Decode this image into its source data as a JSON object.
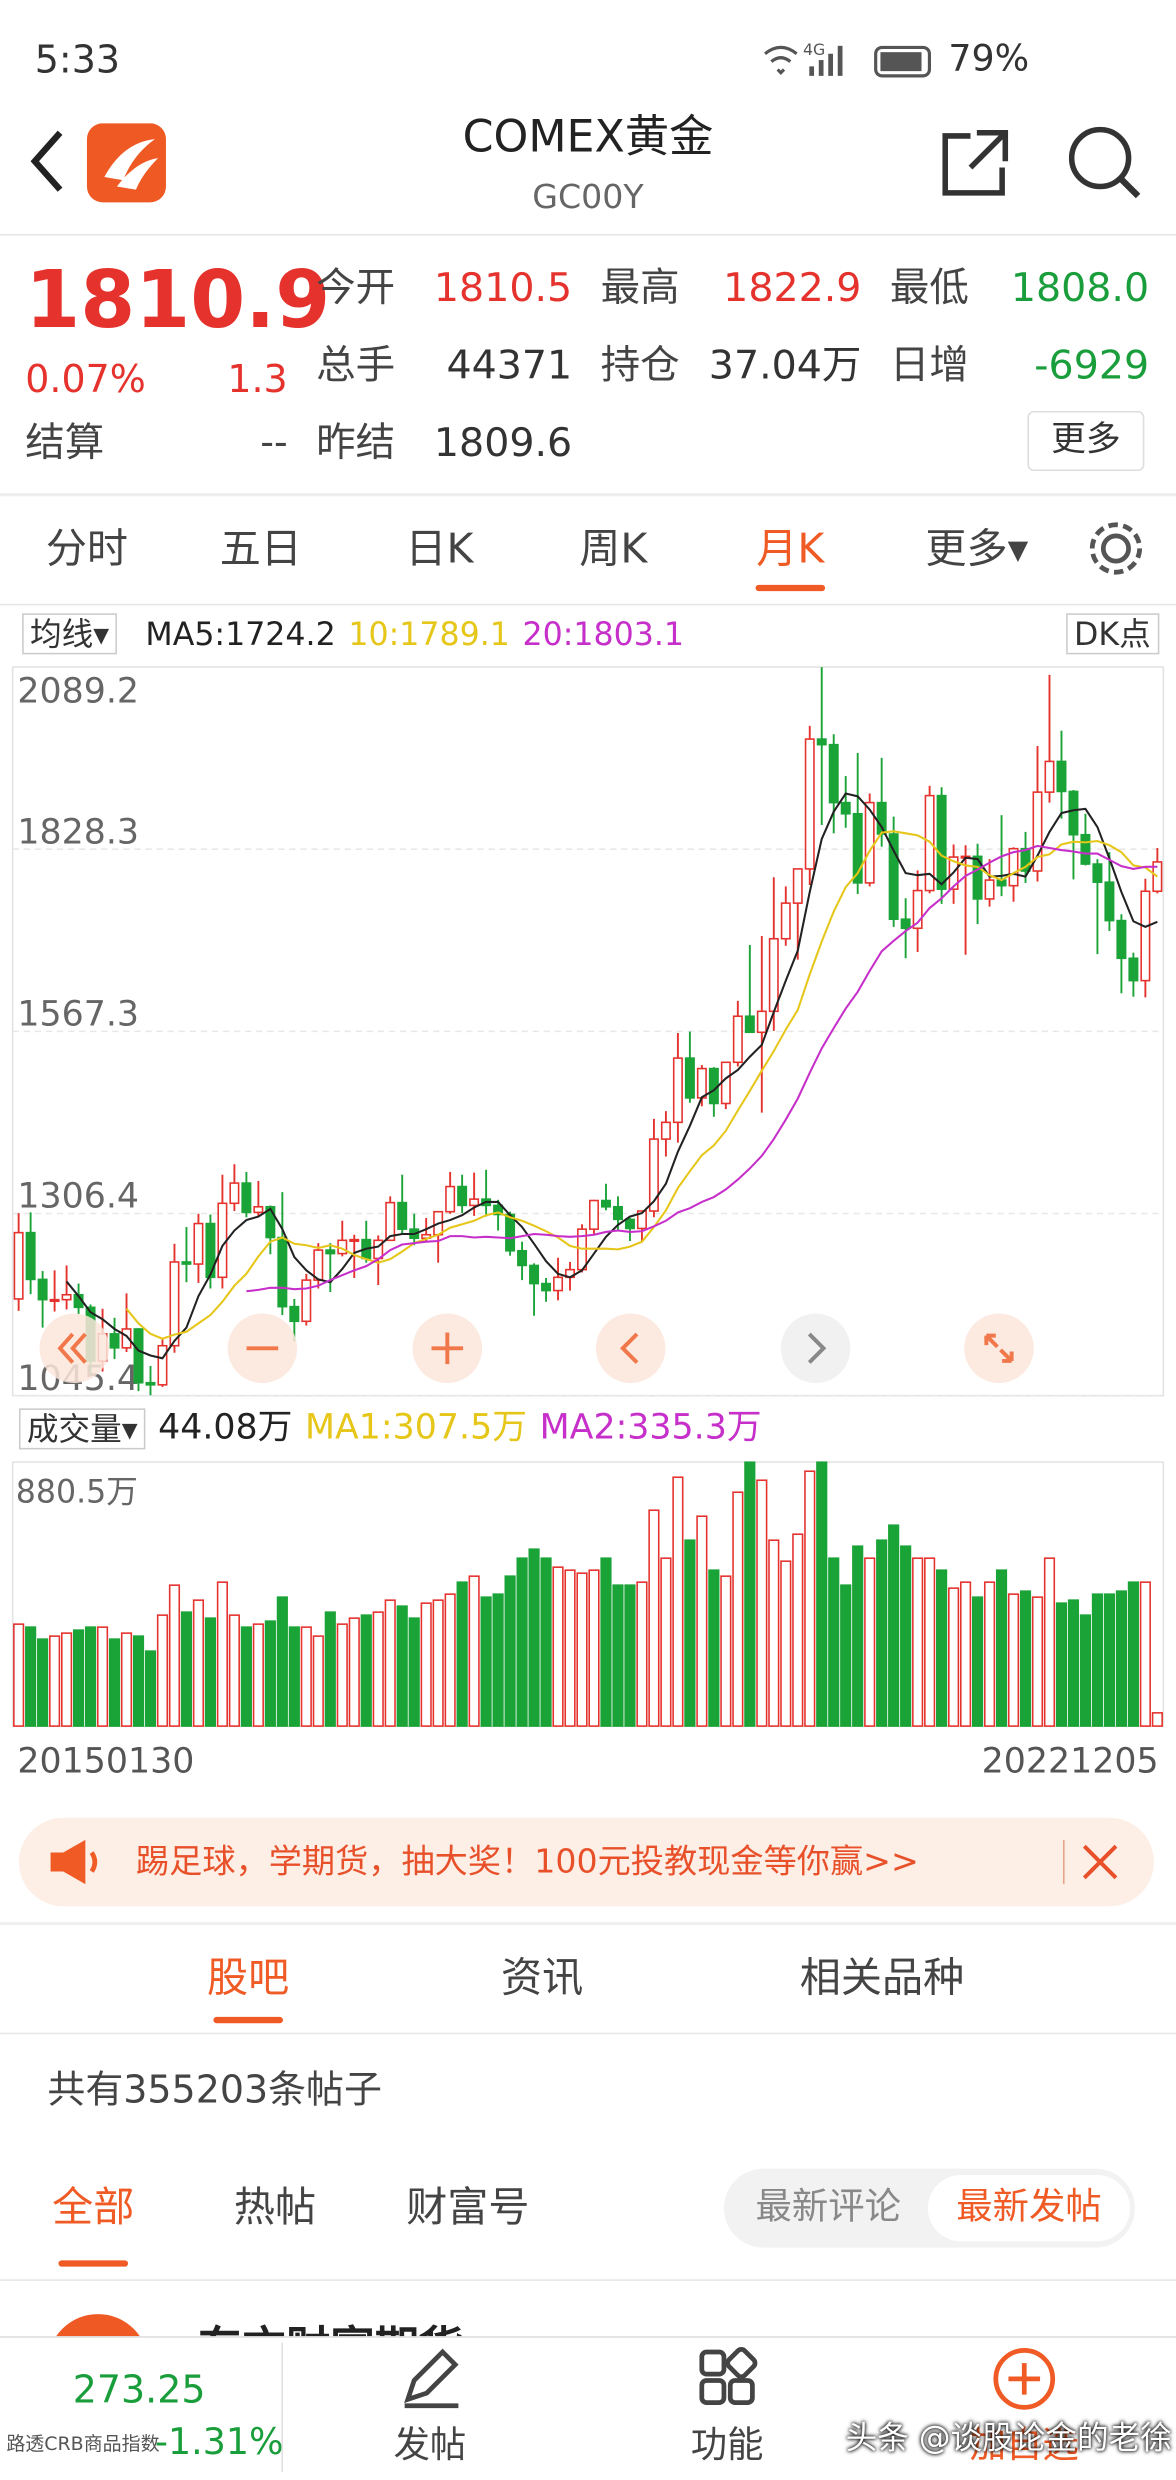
{
  "status_bar": {
    "time": "5:33",
    "network": "4G",
    "battery": "79%"
  },
  "header": {
    "title": "COMEX黄金",
    "code": "GC00Y"
  },
  "quote": {
    "price": "1810.9",
    "change_pct": "0.07%",
    "change": "1.3",
    "settle_label": "结算",
    "settle_value": "--",
    "more_button": "更多",
    "fields": [
      {
        "label": "今开",
        "value": "1810.5",
        "color": "#e5322d"
      },
      {
        "label": "最高",
        "value": "1822.9",
        "color": "#e5322d"
      },
      {
        "label": "最低",
        "value": "1808.0",
        "color": "#1a9e3c"
      },
      {
        "label": "总手",
        "value": "44371",
        "color": "#333333"
      },
      {
        "label": "持仓",
        "value": "37.04万",
        "color": "#333333"
      },
      {
        "label": "日增",
        "value": "-6929",
        "color": "#1a9e3c"
      },
      {
        "label": "昨结",
        "value": "1809.6",
        "color": "#333333"
      }
    ]
  },
  "period_tabs": {
    "items": [
      "分时",
      "五日",
      "日K",
      "周K",
      "月K",
      "更多▾"
    ],
    "active": 4
  },
  "dk_button": "DK点",
  "chart_data": [
    {
      "type": "candlestick",
      "legend": "均线▾",
      "ylim": [
        1045.4,
        2089.2
      ],
      "yticks": [
        1045.4,
        1306.4,
        1567.3,
        1828.3,
        2089.2
      ],
      "grid": true,
      "up_color": "#e5322d",
      "down_color": "#1aa336",
      "candles": [
        [
          1184,
          1307,
          1167,
          1279
        ],
        [
          1279,
          1308,
          1191,
          1212
        ],
        [
          1212,
          1224,
          1143,
          1183
        ],
        [
          1183,
          1225,
          1166,
          1183
        ],
        [
          1183,
          1232,
          1169,
          1190
        ],
        [
          1190,
          1206,
          1162,
          1172
        ],
        [
          1172,
          1176,
          1077,
          1095
        ],
        [
          1095,
          1170,
          1080,
          1134
        ],
        [
          1134,
          1157,
          1098,
          1114
        ],
        [
          1114,
          1192,
          1108,
          1141
        ],
        [
          1141,
          1142,
          1052,
          1064
        ],
        [
          1064,
          1088,
          1046,
          1061
        ],
        [
          1061,
          1128,
          1058,
          1117
        ],
        [
          1117,
          1263,
          1107,
          1237
        ],
        [
          1237,
          1287,
          1208,
          1234
        ],
        [
          1234,
          1306,
          1207,
          1292
        ],
        [
          1292,
          1305,
          1199,
          1215
        ],
        [
          1215,
          1362,
          1199,
          1321
        ],
        [
          1321,
          1377,
          1310,
          1350
        ],
        [
          1350,
          1366,
          1301,
          1308
        ],
        [
          1308,
          1353,
          1302,
          1316
        ],
        [
          1316,
          1318,
          1248,
          1272
        ],
        [
          1272,
          1337,
          1161,
          1173
        ],
        [
          1173,
          1184,
          1123,
          1152
        ],
        [
          1152,
          1220,
          1146,
          1211
        ],
        [
          1211,
          1264,
          1199,
          1254
        ],
        [
          1254,
          1264,
          1194,
          1249
        ],
        [
          1249,
          1296,
          1245,
          1268
        ],
        [
          1268,
          1276,
          1214,
          1269
        ],
        [
          1269,
          1296,
          1236,
          1242
        ],
        [
          1242,
          1275,
          1204,
          1268
        ],
        [
          1268,
          1331,
          1267,
          1322
        ],
        [
          1322,
          1362,
          1278,
          1284
        ],
        [
          1284,
          1306,
          1261,
          1271
        ],
        [
          1271,
          1300,
          1266,
          1276
        ],
        [
          1276,
          1310,
          1236,
          1309
        ],
        [
          1309,
          1366,
          1306,
          1345
        ],
        [
          1345,
          1362,
          1307,
          1318
        ],
        [
          1318,
          1365,
          1303,
          1327
        ],
        [
          1327,
          1369,
          1302,
          1318
        ],
        [
          1318,
          1326,
          1282,
          1305
        ],
        [
          1305,
          1309,
          1246,
          1253
        ],
        [
          1253,
          1266,
          1211,
          1232
        ],
        [
          1232,
          1235,
          1160,
          1206
        ],
        [
          1206,
          1214,
          1180,
          1196
        ],
        [
          1196,
          1243,
          1182,
          1215
        ],
        [
          1215,
          1237,
          1196,
          1226
        ],
        [
          1226,
          1291,
          1222,
          1284
        ],
        [
          1284,
          1326,
          1277,
          1325
        ],
        [
          1325,
          1349,
          1311,
          1316
        ],
        [
          1316,
          1331,
          1281,
          1298
        ],
        [
          1298,
          1300,
          1267,
          1285
        ],
        [
          1285,
          1310,
          1267,
          1310
        ],
        [
          1310,
          1442,
          1301,
          1413
        ],
        [
          1413,
          1453,
          1388,
          1437
        ],
        [
          1437,
          1565,
          1408,
          1529
        ],
        [
          1529,
          1567,
          1465,
          1472
        ],
        [
          1472,
          1519,
          1460,
          1514
        ],
        [
          1514,
          1516,
          1445,
          1464
        ],
        [
          1464,
          1524,
          1456,
          1523
        ],
        [
          1523,
          1611,
          1517,
          1589
        ],
        [
          1589,
          1691,
          1565,
          1566
        ],
        [
          1566,
          1704,
          1451,
          1596
        ],
        [
          1596,
          1788,
          1568,
          1700
        ],
        [
          1700,
          1775,
          1690,
          1751
        ],
        [
          1751,
          1800,
          1670,
          1800
        ],
        [
          1800,
          2005,
          1777,
          1986
        ],
        [
          1986,
          2089,
          1863,
          1978
        ],
        [
          1978,
          1993,
          1851,
          1895
        ],
        [
          1895,
          1933,
          1859,
          1879
        ],
        [
          1879,
          1966,
          1764,
          1780
        ],
        [
          1780,
          1908,
          1775,
          1895
        ],
        [
          1895,
          1959,
          1832,
          1850
        ],
        [
          1850,
          1875,
          1717,
          1728
        ],
        [
          1728,
          1758,
          1672,
          1715
        ],
        [
          1715,
          1798,
          1681,
          1769
        ],
        [
          1769,
          1919,
          1765,
          1905
        ],
        [
          1905,
          1917,
          1750,
          1771
        ],
        [
          1771,
          1835,
          1750,
          1817
        ],
        [
          1817,
          1834,
          1677,
          1818
        ],
        [
          1818,
          1836,
          1721,
          1757
        ],
        [
          1757,
          1814,
          1746,
          1784
        ],
        [
          1784,
          1877,
          1761,
          1776
        ],
        [
          1776,
          1831,
          1753,
          1829
        ],
        [
          1829,
          1853,
          1780,
          1797
        ],
        [
          1797,
          1976,
          1782,
          1910
        ],
        [
          1910,
          2078,
          1895,
          1954
        ],
        [
          1954,
          1998,
          1872,
          1911
        ],
        [
          1911,
          1913,
          1785,
          1849
        ],
        [
          1849,
          1879,
          1805,
          1807
        ],
        [
          1807,
          1814,
          1678,
          1781
        ],
        [
          1781,
          1824,
          1711,
          1726
        ],
        [
          1726,
          1735,
          1622,
          1672
        ],
        [
          1672,
          1680,
          1617,
          1640
        ],
        [
          1640,
          1786,
          1616,
          1768
        ],
        [
          1768,
          1830,
          1765,
          1810
        ]
      ],
      "series": [
        {
          "name": "MA5:1724.2",
          "color": "#222222",
          "values": [
            null,
            null,
            null,
            null,
            1209,
            1188,
            1165,
            1155,
            1141,
            1131,
            1110,
            1103,
            1099,
            1124,
            1143,
            1188,
            1219,
            1260,
            1282,
            1297,
            1302,
            1313,
            1284,
            1244,
            1225,
            1212,
            1208,
            1227,
            1250,
            1256,
            1259,
            1274,
            1277,
            1277,
            1284,
            1292,
            1297,
            1304,
            1315,
            1323,
            1323,
            1304,
            1287,
            1263,
            1238,
            1220,
            1215,
            1225,
            1249,
            1273,
            1290,
            1302,
            1307,
            1324,
            1349,
            1395,
            1432,
            1473,
            1483,
            1500,
            1512,
            1531,
            1548,
            1595,
            1640,
            1683,
            1767,
            1843,
            1882,
            1908,
            1904,
            1885,
            1860,
            1826,
            1794,
            1791,
            1793,
            1778,
            1795,
            1816,
            1814,
            1789,
            1790,
            1793,
            1789,
            1819,
            1853,
            1880,
            1884,
            1886,
            1860,
            1815,
            1767,
            1725,
            1717,
            1724.2
          ]
        },
        {
          "name": "10:1789.1",
          "color": "#e6c619",
          "values": [
            null,
            null,
            null,
            null,
            null,
            null,
            null,
            null,
            null,
            1170,
            1149,
            1134,
            1127,
            1133,
            1137,
            1149,
            1161,
            1180,
            1203,
            1220,
            1245,
            1266,
            1272,
            1263,
            1261,
            1257,
            1261,
            1256,
            1247,
            1241,
            1236,
            1241,
            1252,
            1264,
            1270,
            1276,
            1286,
            1291,
            1296,
            1304,
            1308,
            1301,
            1296,
            1289,
            1281,
            1272,
            1260,
            1256,
            1256,
            1256,
            1255,
            1259,
            1266,
            1287,
            1311,
            1343,
            1367,
            1390,
            1404,
            1425,
            1454,
            1482,
            1511,
            1539,
            1570,
            1598,
            1649,
            1696,
            1739,
            1774,
            1794,
            1826,
            1852,
            1854,
            1851,
            1848,
            1839,
            1819,
            1811,
            1805,
            1803,
            1791,
            1784,
            1794,
            1803,
            1817,
            1821,
            1835,
            1839,
            1838,
            1840,
            1834,
            1824,
            1805,
            1802,
            1789.1
          ]
        },
        {
          "name": "20:1803.1",
          "color": "#c62fc9",
          "values": [
            null,
            null,
            null,
            null,
            null,
            null,
            null,
            null,
            null,
            null,
            null,
            null,
            null,
            null,
            null,
            null,
            null,
            null,
            null,
            1195,
            1197,
            1200,
            1200,
            1198,
            1199,
            1203,
            1211,
            1218,
            1225,
            1231,
            1241,
            1254,
            1262,
            1264,
            1266,
            1267,
            1274,
            1274,
            1272,
            1273,
            1272,
            1271,
            1274,
            1277,
            1276,
            1274,
            1273,
            1274,
            1276,
            1280,
            1282,
            1280,
            1281,
            1288,
            1296,
            1308,
            1314,
            1323,
            1330,
            1341,
            1355,
            1371,
            1389,
            1413,
            1441,
            1471,
            1508,
            1543,
            1572,
            1600,
            1624,
            1654,
            1682,
            1697,
            1711,
            1723,
            1744,
            1758,
            1775,
            1790,
            1799,
            1809,
            1818,
            1824,
            1827,
            1833,
            1830,
            1827,
            1825,
            1822,
            1822,
            1813,
            1804,
            1800,
            1803,
            1803.1
          ]
        }
      ]
    },
    {
      "type": "bar",
      "legend": "成交量▾",
      "current_label": "44.08万",
      "ylim": [
        0,
        880.5
      ],
      "yticks": [
        {
          "value": 880.5,
          "label": "880.5万"
        }
      ],
      "ma_labels": [
        {
          "text": "MA1:307.5万",
          "color": "#e6c619"
        },
        {
          "text": "MA2:335.3万",
          "color": "#c62fc9"
        }
      ],
      "categories": [
        "20150130",
        null,
        null,
        null,
        null,
        null,
        null,
        null,
        null,
        null,
        null,
        null,
        null,
        null,
        null,
        null,
        null,
        null,
        null,
        null,
        null,
        null,
        null,
        null,
        null,
        null,
        null,
        null,
        null,
        null,
        null,
        null,
        null,
        null,
        null,
        null,
        null,
        null,
        null,
        null,
        null,
        null,
        null,
        null,
        null,
        null,
        null,
        null,
        null,
        null,
        null,
        null,
        null,
        null,
        null,
        null,
        null,
        null,
        null,
        null,
        null,
        null,
        null,
        null,
        null,
        null,
        null,
        null,
        null,
        null,
        null,
        null,
        null,
        null,
        null,
        null,
        null,
        null,
        null,
        null,
        null,
        null,
        null,
        null,
        null,
        null,
        null,
        null,
        null,
        null,
        null,
        null,
        null,
        null,
        null,
        "20221205"
      ],
      "values": [
        340,
        330,
        290,
        300,
        310,
        320,
        330,
        330,
        290,
        310,
        300,
        250,
        370,
        470,
        380,
        420,
        360,
        480,
        370,
        330,
        340,
        350,
        430,
        330,
        330,
        300,
        380,
        340,
        360,
        370,
        380,
        420,
        400,
        360,
        410,
        420,
        440,
        480,
        500,
        430,
        440,
        500,
        560,
        590,
        560,
        530,
        520,
        510,
        520,
        560,
        470,
        470,
        480,
        720,
        560,
        830,
        620,
        700,
        520,
        500,
        780,
        880,
        820,
        620,
        550,
        640,
        850,
        880,
        560,
        470,
        600,
        560,
        620,
        670,
        600,
        560,
        560,
        520,
        460,
        480,
        430,
        480,
        520,
        440,
        450,
        430,
        560,
        410,
        420,
        370,
        440,
        440,
        450,
        480,
        480,
        44.08
      ]
    }
  ],
  "banner": {
    "text": "踢足球，学期货，抽大奖！100元投教现金等你赢>>"
  },
  "community_tabs": {
    "items": [
      "股吧",
      "资讯",
      "相关品种"
    ],
    "active": 0
  },
  "post_count": "共有355203条帖子",
  "filter_tabs": {
    "items": [
      "全部",
      "热帖",
      "财富号"
    ],
    "active": 0
  },
  "sort_tabs": {
    "items": [
      "最新评论",
      "最新发帖"
    ],
    "active": 1
  },
  "first_post": {
    "author": "东方财富期货"
  },
  "bottom_bar": {
    "index_value": "273.25",
    "index_name": "路透CRB商品指数",
    "index_change": "-1.31%",
    "actions": [
      "发帖",
      "功能",
      "加自选"
    ]
  },
  "watermark": "头条 @谈股论金的老徐"
}
